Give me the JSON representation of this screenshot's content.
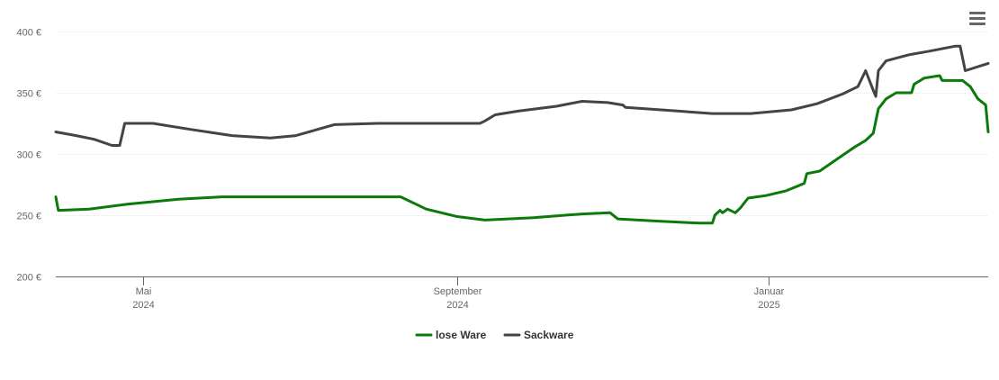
{
  "menu": {
    "icon": "hamburger-menu-icon"
  },
  "chart_data": {
    "type": "line",
    "title": "",
    "xlabel": "",
    "ylabel": "",
    "y_unit": "€",
    "ylim": [
      200,
      400
    ],
    "yticks": [
      {
        "value": 200,
        "label": "200 €"
      },
      {
        "value": 250,
        "label": "250 €"
      },
      {
        "value": 300,
        "label": "300 €"
      },
      {
        "value": 350,
        "label": "350 €"
      },
      {
        "value": 400,
        "label": "400 €"
      }
    ],
    "xlim": [
      "2024-03-28",
      "2025-03-28"
    ],
    "xticks": [
      {
        "date": "2024-05-01",
        "month": "Mai",
        "year": "2024"
      },
      {
        "date": "2024-09-01",
        "month": "September",
        "year": "2024"
      },
      {
        "date": "2025-01-01",
        "month": "Januar",
        "year": "2025"
      }
    ],
    "grid": true,
    "legend_position": "bottom-center",
    "series": [
      {
        "name": "lose Ware",
        "color": "#0b7a0b",
        "points": [
          [
            "2024-03-28",
            265
          ],
          [
            "2024-03-29",
            254
          ],
          [
            "2024-04-10",
            255
          ],
          [
            "2024-04-25",
            259
          ],
          [
            "2024-05-15",
            263
          ],
          [
            "2024-06-01",
            265
          ],
          [
            "2024-07-01",
            265
          ],
          [
            "2024-08-01",
            265
          ],
          [
            "2024-08-10",
            265
          ],
          [
            "2024-08-20",
            255
          ],
          [
            "2024-09-01",
            249
          ],
          [
            "2024-09-12",
            246
          ],
          [
            "2024-10-01",
            248
          ],
          [
            "2024-10-20",
            251
          ],
          [
            "2024-10-31",
            252
          ],
          [
            "2024-11-03",
            247
          ],
          [
            "2024-11-20",
            245
          ],
          [
            "2024-12-05",
            243.5
          ],
          [
            "2024-12-10",
            243.5
          ],
          [
            "2024-12-11",
            250
          ],
          [
            "2024-12-13",
            254
          ],
          [
            "2024-12-14",
            252
          ],
          [
            "2024-12-16",
            255
          ],
          [
            "2024-12-19",
            252
          ],
          [
            "2024-12-21",
            256
          ],
          [
            "2024-12-24",
            264
          ],
          [
            "2024-12-31",
            266
          ],
          [
            "2025-01-08",
            270
          ],
          [
            "2025-01-15",
            276
          ],
          [
            "2025-01-16",
            284
          ],
          [
            "2025-01-21",
            286
          ],
          [
            "2025-01-28",
            296
          ],
          [
            "2025-02-04",
            306
          ],
          [
            "2025-02-08",
            311
          ],
          [
            "2025-02-11",
            317
          ],
          [
            "2025-02-13",
            337
          ],
          [
            "2025-02-16",
            345
          ],
          [
            "2025-02-20",
            350
          ],
          [
            "2025-02-26",
            350
          ],
          [
            "2025-02-27",
            357
          ],
          [
            "2025-03-03",
            362
          ],
          [
            "2025-03-09",
            364
          ],
          [
            "2025-03-10",
            360
          ],
          [
            "2025-03-18",
            360
          ],
          [
            "2025-03-21",
            355
          ],
          [
            "2025-03-24",
            345
          ],
          [
            "2025-03-27",
            340
          ],
          [
            "2025-03-28",
            318
          ]
        ]
      },
      {
        "name": "Sackware",
        "color": "#444444",
        "points": [
          [
            "2024-03-28",
            318
          ],
          [
            "2024-04-05",
            315
          ],
          [
            "2024-04-12",
            312
          ],
          [
            "2024-04-19",
            307
          ],
          [
            "2024-04-22",
            307
          ],
          [
            "2024-04-24",
            325
          ],
          [
            "2024-05-05",
            325
          ],
          [
            "2024-05-20",
            320
          ],
          [
            "2024-06-05",
            315
          ],
          [
            "2024-06-20",
            313
          ],
          [
            "2024-06-30",
            315
          ],
          [
            "2024-07-15",
            324
          ],
          [
            "2024-08-01",
            325
          ],
          [
            "2024-08-20",
            325
          ],
          [
            "2024-09-10",
            325
          ],
          [
            "2024-09-12",
            327
          ],
          [
            "2024-09-16",
            332
          ],
          [
            "2024-09-25",
            335
          ],
          [
            "2024-10-10",
            339
          ],
          [
            "2024-10-20",
            343
          ],
          [
            "2024-10-30",
            342
          ],
          [
            "2024-11-05",
            340
          ],
          [
            "2024-11-06",
            338
          ],
          [
            "2024-11-20",
            336
          ],
          [
            "2024-12-10",
            333
          ],
          [
            "2024-12-25",
            333
          ],
          [
            "2025-01-10",
            336
          ],
          [
            "2025-01-20",
            341
          ],
          [
            "2025-01-30",
            349
          ],
          [
            "2025-02-05",
            355
          ],
          [
            "2025-02-08",
            368
          ],
          [
            "2025-02-11",
            352
          ],
          [
            "2025-02-12",
            347
          ],
          [
            "2025-02-13",
            368
          ],
          [
            "2025-02-16",
            376
          ],
          [
            "2025-02-25",
            381
          ],
          [
            "2025-03-05",
            384
          ],
          [
            "2025-03-15",
            388
          ],
          [
            "2025-03-17",
            388
          ],
          [
            "2025-03-19",
            368
          ],
          [
            "2025-03-28",
            374
          ]
        ]
      }
    ]
  }
}
